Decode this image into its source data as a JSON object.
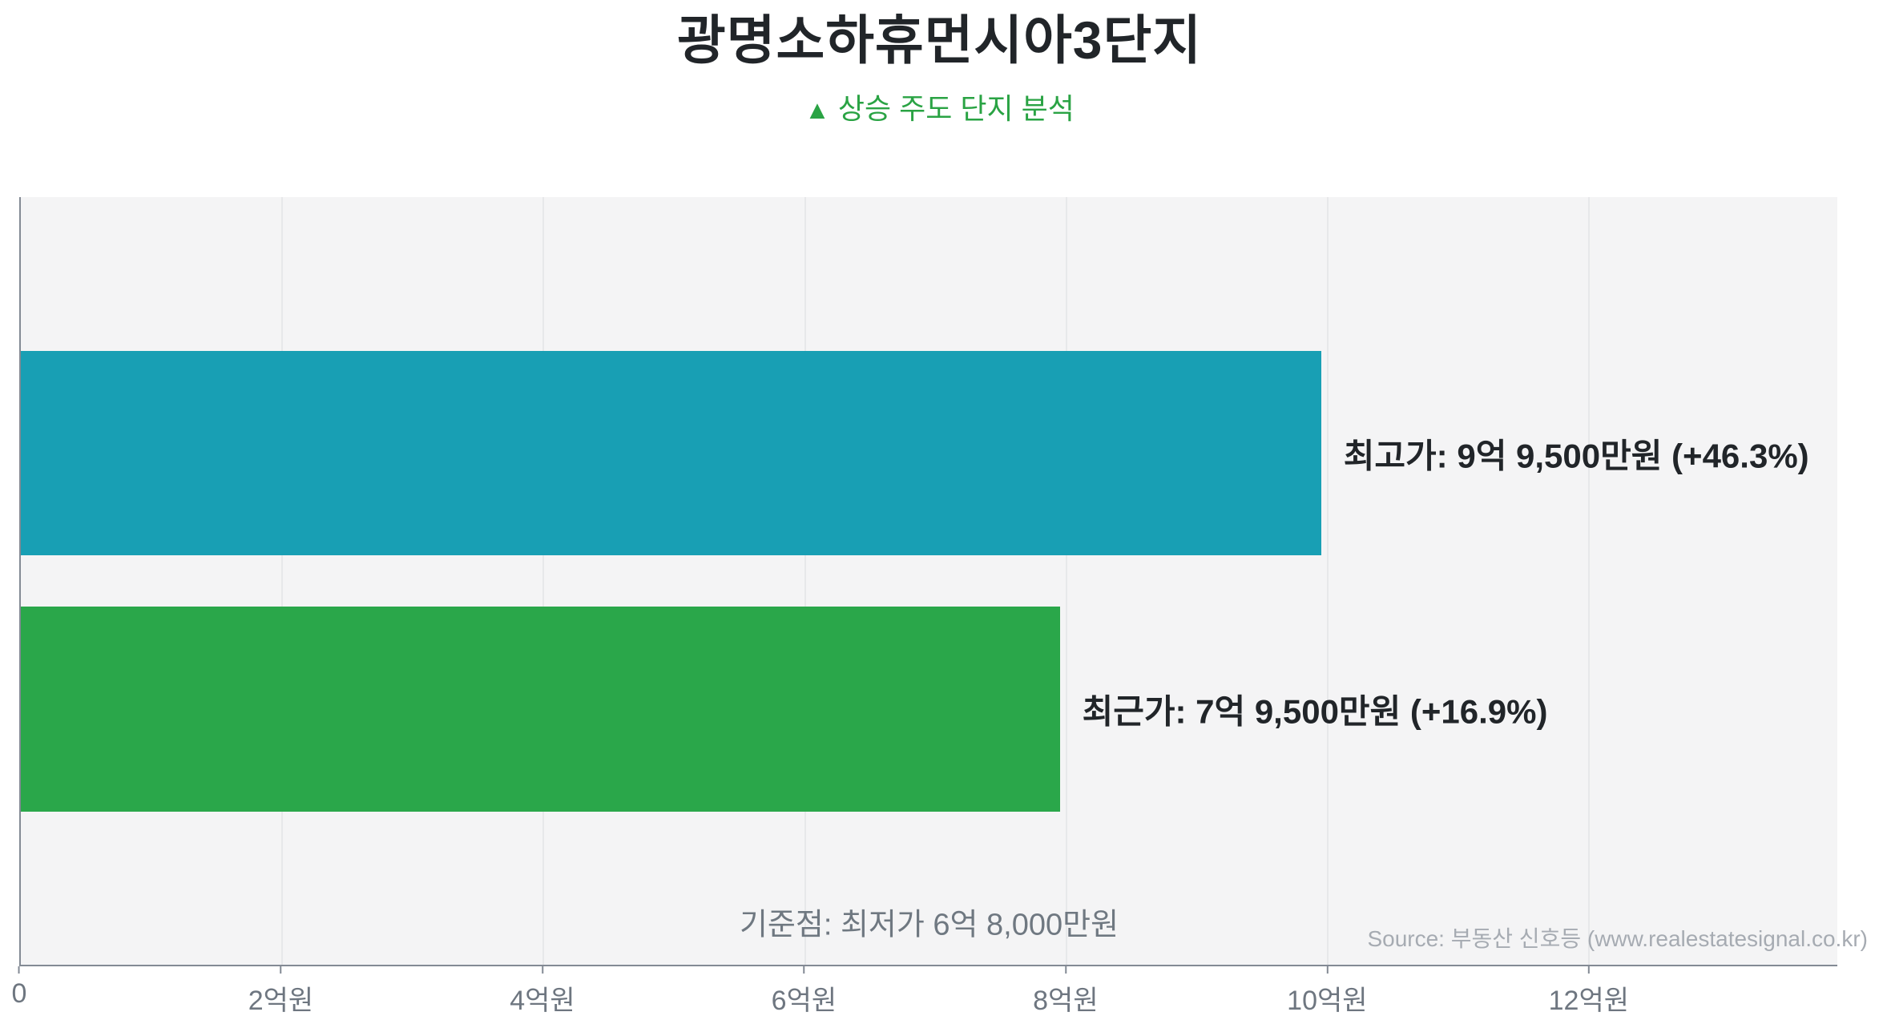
{
  "chart_data": {
    "type": "bar",
    "orientation": "horizontal",
    "title": "광명소하휴먼시아3단지",
    "subtitle_marker": "▲",
    "subtitle": "상승 주도 단지 분석",
    "subtitle_color": "#2aa344",
    "title_color": "#212529",
    "unit": "억원",
    "axis_max_eok": 13.9,
    "x_ticks": [
      {
        "label": "0",
        "value": 0
      },
      {
        "label": "2억원",
        "value": 2
      },
      {
        "label": "4억원",
        "value": 4
      },
      {
        "label": "6억원",
        "value": 6
      },
      {
        "label": "8억원",
        "value": 8
      },
      {
        "label": "10억원",
        "value": 10
      },
      {
        "label": "12억원",
        "value": 12
      }
    ],
    "bars": [
      {
        "name": "최고가",
        "label": "최고가: 9억 9,500만원 (+46.3%)",
        "value_eok": 9.95,
        "change_pct": "+46.3%",
        "color": "#189fb4"
      },
      {
        "name": "최근가",
        "label": "최근가: 7억 9,500만원 (+16.9%)",
        "value_eok": 7.95,
        "change_pct": "+16.9%",
        "color": "#2aa74a"
      }
    ],
    "baseline_note": "기준점: 최저가 6억 8,000만원",
    "baseline_value_eok": 6.8,
    "plot_bg": "#f4f4f5",
    "grid_color": "#e7e8ea",
    "axis_color": "#838a94",
    "grid": true,
    "legend": "none"
  },
  "footer": {
    "source": "Source: 부동산 신호등 (www.realestatesignal.co.kr)"
  }
}
